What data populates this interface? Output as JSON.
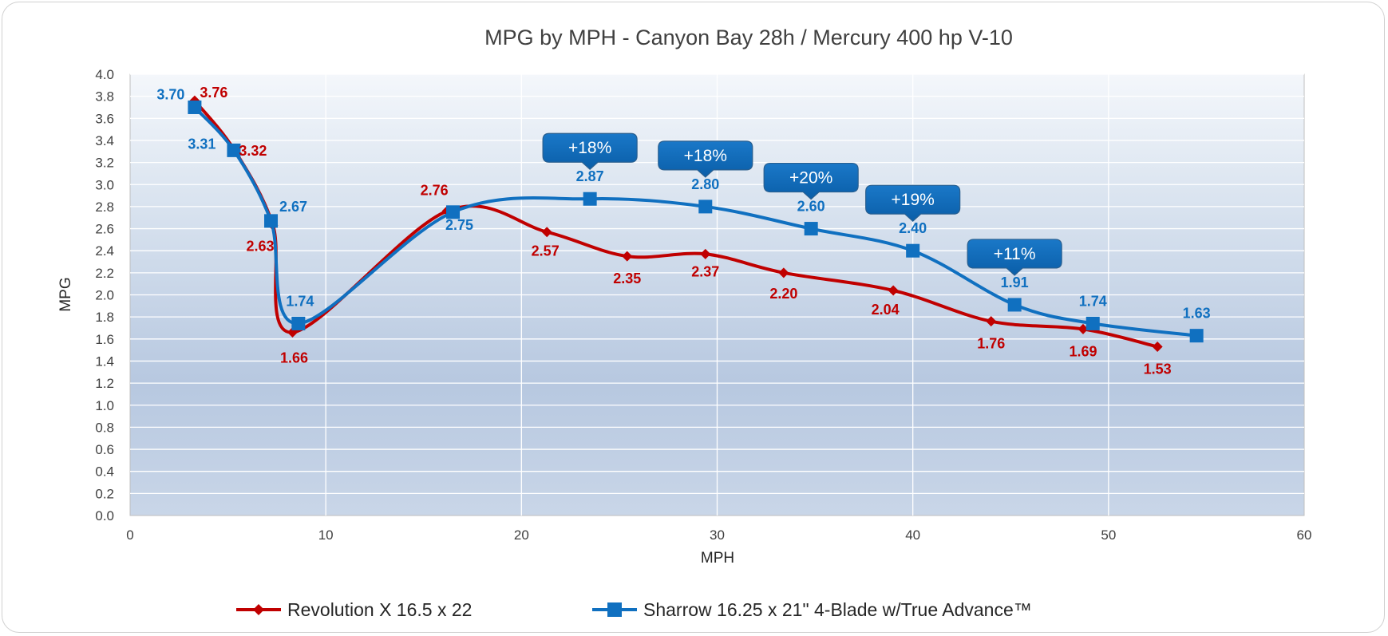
{
  "chart_data": {
    "type": "line",
    "title": "MPG by MPH - Canyon Bay 28h / Mercury 400 hp V-10",
    "xlabel": "MPH",
    "ylabel": "MPG",
    "xlim": [
      0,
      60
    ],
    "ylim": [
      0,
      4.0
    ],
    "x_ticks": [
      "0",
      "10",
      "20",
      "30",
      "40",
      "50",
      "60"
    ],
    "y_ticks": [
      "0.0",
      "0.2",
      "0.4",
      "0.6",
      "0.8",
      "1.0",
      "1.2",
      "1.4",
      "1.6",
      "1.8",
      "2.0",
      "2.2",
      "2.4",
      "2.6",
      "2.8",
      "3.0",
      "3.2",
      "3.4",
      "3.6",
      "3.8",
      "4.0"
    ],
    "grid": true,
    "legend_position": "bottom",
    "series": [
      {
        "name": "Revolution X 16.5 x 22",
        "color": "#C00000",
        "marker": "diamond",
        "x": [
          3.3,
          5.3,
          7.3,
          8.3,
          16.2,
          21.3,
          25.4,
          29.4,
          33.4,
          39.0,
          44.0,
          48.7,
          52.5
        ],
        "y": [
          3.76,
          3.32,
          2.63,
          1.66,
          2.76,
          2.57,
          2.35,
          2.37,
          2.2,
          2.04,
          1.76,
          1.69,
          1.53
        ],
        "labels": [
          "3.76",
          "3.32",
          "2.63",
          "1.66",
          "2.76",
          "2.57",
          "2.35",
          "2.37",
          "2.20",
          "2.04",
          "1.76",
          "1.69",
          "1.53"
        ]
      },
      {
        "name": "Sharrow 16.25 x 21\" 4-Blade w/True Advance™",
        "color": "#1070C0",
        "marker": "square",
        "x": [
          3.3,
          5.3,
          7.2,
          8.6,
          16.5,
          23.5,
          29.4,
          34.8,
          40.0,
          45.2,
          49.2,
          54.5
        ],
        "y": [
          3.7,
          3.31,
          2.67,
          1.74,
          2.75,
          2.87,
          2.8,
          2.6,
          2.4,
          1.91,
          1.74,
          1.63
        ],
        "labels": [
          "3.70",
          "3.31",
          "2.67",
          "1.74",
          "2.75",
          "2.87",
          "2.80",
          "2.60",
          "2.40",
          "1.91",
          "1.74",
          "1.63"
        ]
      }
    ],
    "callouts": [
      {
        "text": "+18%",
        "x": 23.5
      },
      {
        "text": "+18%",
        "x": 29.4
      },
      {
        "text": "+20%",
        "x": 34.8
      },
      {
        "text": "+19%",
        "x": 40.0
      },
      {
        "text": "+11%",
        "x": 45.2
      }
    ]
  }
}
